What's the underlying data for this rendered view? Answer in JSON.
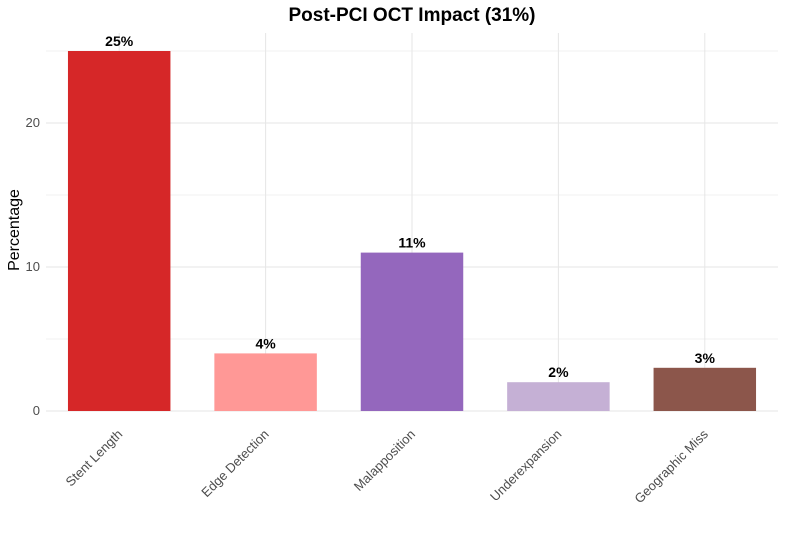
{
  "chart_data": {
    "type": "bar",
    "title": "Post-PCI OCT Impact (31%)",
    "xlabel": "",
    "ylabel": "Percentage",
    "categories": [
      "Stent Length",
      "Edge Detection",
      "Malapposition",
      "Underexpansion",
      "Geographic Miss"
    ],
    "values": [
      25,
      4,
      11,
      2,
      3
    ],
    "data_labels": [
      "25%",
      "4%",
      "11%",
      "2%",
      "3%"
    ],
    "colors": [
      "#d62728",
      "#ff9896",
      "#9467bd",
      "#c5b0d5",
      "#8c564b"
    ],
    "ylim": [
      0,
      26.25
    ],
    "yticks": [
      0,
      10,
      20
    ],
    "ytick_labels": [
      "0",
      "10",
      "20"
    ],
    "grid": true,
    "legend": "none"
  }
}
